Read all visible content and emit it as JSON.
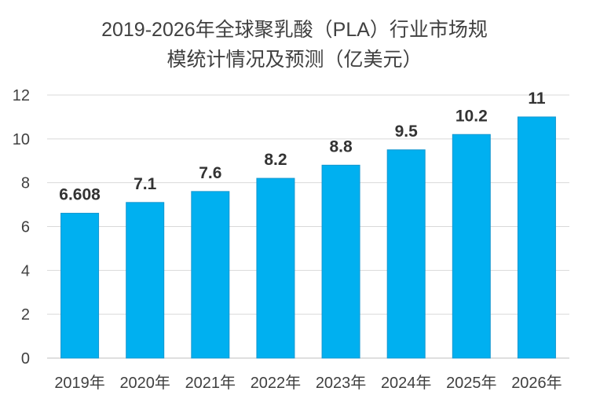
{
  "chart_data": {
    "type": "bar",
    "title_lines": [
      "2019-2026年全球聚乳酸（PLA）行业市场规",
      "模统计情况及预测（亿美元）"
    ],
    "categories": [
      "2019年",
      "2020年",
      "2021年",
      "2022年",
      "2023年",
      "2024年",
      "2025年",
      "2026年"
    ],
    "values": [
      6.608,
      7.1,
      7.6,
      8.2,
      8.8,
      9.5,
      10.2,
      11
    ],
    "data_labels": [
      "6.608",
      "7.1",
      "7.6",
      "8.2",
      "8.8",
      "9.5",
      "10.2",
      "11"
    ],
    "y_ticks": [
      "0",
      "2",
      "4",
      "6",
      "8",
      "10",
      "12"
    ],
    "ylim": [
      0,
      12
    ],
    "grid": true,
    "legend": "none",
    "bar_color": "#00B0F0",
    "bar_border_color": "#1497D0"
  }
}
